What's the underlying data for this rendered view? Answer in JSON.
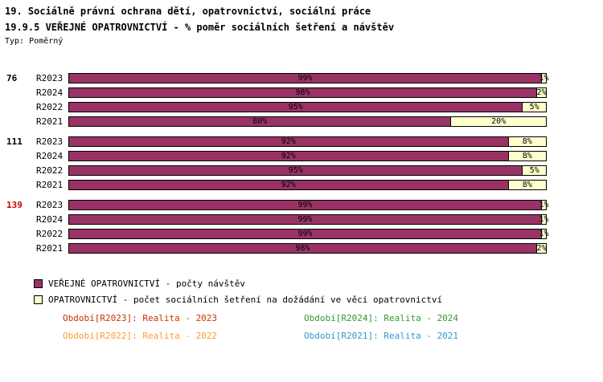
{
  "title1": "19. Sociálně právní ochrana dětí, opatrovnictví, sociální práce",
  "title2": "19.9.5 VEŘEJNÉ OPATROVNICTVÍ - % poměr sociálních šetření a návštěv",
  "subtitle": "Typ: Poměrný",
  "chart_data": {
    "type": "bar",
    "orientation": "horizontal",
    "stacked": true,
    "unit": "%",
    "x_range": [
      0,
      100
    ],
    "series": [
      {
        "name": "VEŘEJNÉ OPATROVNICTVÍ - počty návštěv",
        "color": "#993366"
      },
      {
        "name": "OPATROVNICTVÍ - počet sociálních šetření na dožádání ve věci opatrovnictví",
        "color": "#FFFFCC"
      }
    ],
    "groups": [
      {
        "label": "76",
        "label_color": "#000000",
        "rows": [
          {
            "period": "R2023",
            "values": [
              99,
              1
            ]
          },
          {
            "period": "R2024",
            "values": [
              98,
              2
            ]
          },
          {
            "period": "R2022",
            "values": [
              95,
              5
            ]
          },
          {
            "period": "R2021",
            "values": [
              80,
              20
            ]
          }
        ]
      },
      {
        "label": "111",
        "label_color": "#000000",
        "rows": [
          {
            "period": "R2023",
            "values": [
              92,
              8
            ]
          },
          {
            "period": "R2024",
            "values": [
              92,
              8
            ]
          },
          {
            "period": "R2022",
            "values": [
              95,
              5
            ]
          },
          {
            "period": "R2021",
            "values": [
              92,
              8
            ]
          }
        ]
      },
      {
        "label": "139",
        "label_color": "#CC0000",
        "rows": [
          {
            "period": "R2023",
            "values": [
              99,
              1
            ]
          },
          {
            "period": "R2024",
            "values": [
              99,
              1
            ]
          },
          {
            "period": "R2022",
            "values": [
              99,
              1
            ]
          },
          {
            "period": "R2021",
            "values": [
              98,
              2
            ]
          }
        ]
      }
    ]
  },
  "legend": [
    {
      "label": "VEŘEJNÉ OPATROVNICTVÍ - počty návštěv",
      "color": "#993366"
    },
    {
      "label": "OPATROVNICTVÍ - počet sociálních šetření na dožádání ve věci opatrovnictví",
      "color": "#FFFFCC"
    }
  ],
  "footer": [
    {
      "text": "Období[R2023]: Realita - 2023",
      "color": "#CC3300"
    },
    {
      "text": "Období[R2024]: Realita - 2024",
      "color": "#339933"
    },
    {
      "text": "Období[R2022]: Realita - 2022",
      "color": "#FF9933"
    },
    {
      "text": "Období[R2021]: Realita - 2021",
      "color": "#3399CC"
    }
  ]
}
